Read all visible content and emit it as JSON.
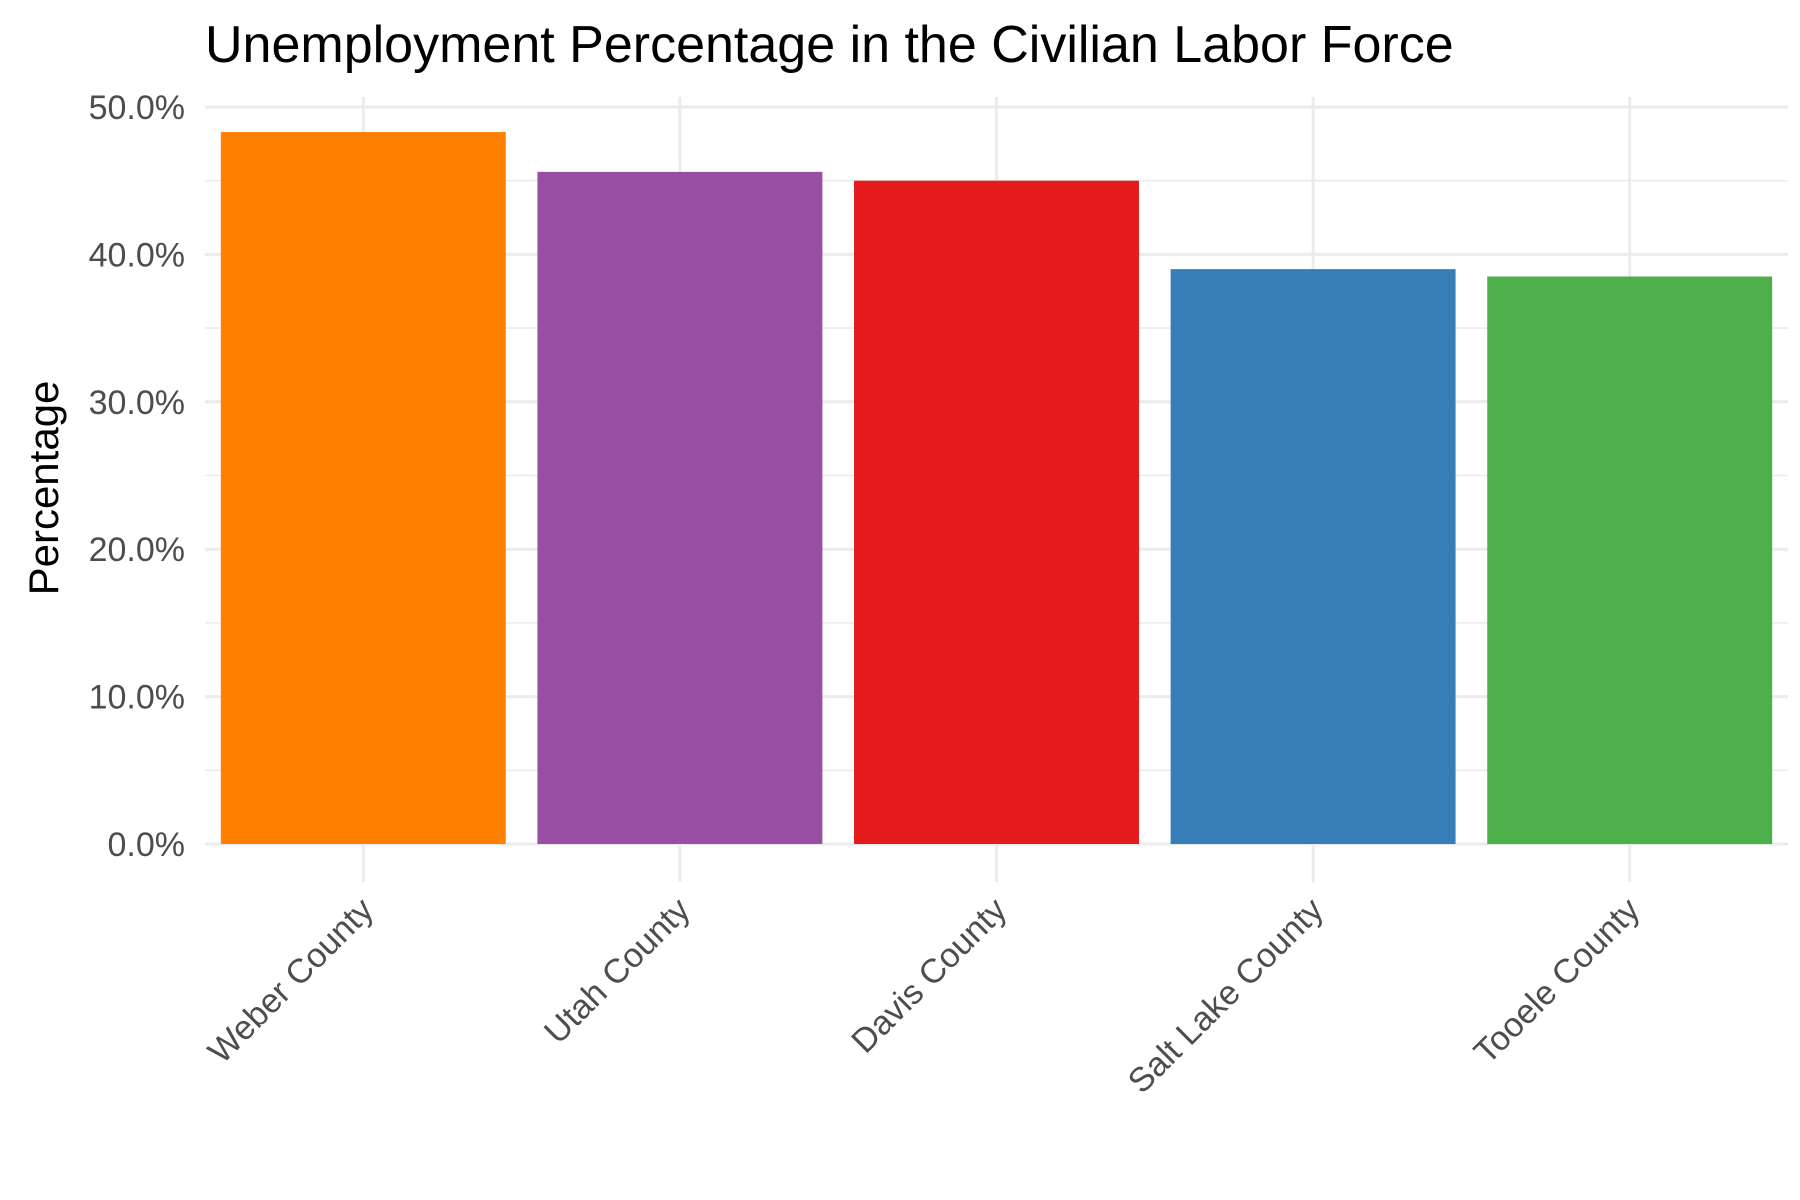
{
  "chart_data": {
    "type": "bar",
    "title": "Unemployment Percentage in the Civilian Labor Force",
    "xlabel": "",
    "ylabel": "Percentage",
    "categories": [
      "Weber County",
      "Utah County",
      "Davis County",
      "Salt Lake County",
      "Tooele County"
    ],
    "values": [
      48.3,
      45.6,
      45.0,
      39.0,
      38.5
    ],
    "colors": [
      "#FF7F00",
      "#984EA3",
      "#E41A1C",
      "#377EB8",
      "#4DAF4A"
    ],
    "ylim": [
      0,
      50
    ],
    "yticks": [
      0,
      10,
      20,
      30,
      40,
      50
    ],
    "ytick_labels": [
      "0.0%",
      "10.0%",
      "20.0%",
      "30.0%",
      "40.0%",
      "50.0%"
    ],
    "grid": true,
    "legend": "none"
  }
}
